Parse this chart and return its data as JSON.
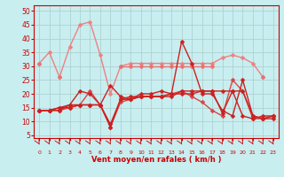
{
  "x": [
    0,
    1,
    2,
    3,
    4,
    5,
    6,
    7,
    8,
    9,
    10,
    11,
    12,
    13,
    14,
    15,
    16,
    17,
    18,
    19,
    20,
    21,
    22,
    23
  ],
  "series": [
    {
      "color": "#f08080",
      "lw": 1.0,
      "marker": "D",
      "ms": 2.5,
      "values": [
        31,
        35,
        26,
        37,
        45,
        46,
        34,
        20,
        30,
        31,
        31,
        31,
        31,
        31,
        31,
        31,
        31,
        31,
        33,
        34,
        33,
        31,
        26,
        null
      ]
    },
    {
      "color": "#e87070",
      "lw": 1.0,
      "marker": "D",
      "ms": 2.5,
      "values": [
        31,
        null,
        26,
        null,
        null,
        null,
        null,
        null,
        30,
        30,
        30,
        30,
        30,
        30,
        30,
        30,
        30,
        30,
        null,
        null,
        null,
        null,
        26,
        null
      ]
    },
    {
      "color": "#dd4444",
      "lw": 1.0,
      "marker": "D",
      "ms": 2.5,
      "values": [
        14,
        14,
        14,
        15,
        16,
        21,
        16,
        8,
        17,
        18,
        19,
        19,
        19,
        20,
        21,
        19,
        17,
        14,
        12,
        25,
        21,
        11,
        11,
        12
      ]
    },
    {
      "color": "#cc2020",
      "lw": 1.0,
      "marker": "D",
      "ms": 2.5,
      "values": [
        14,
        14,
        14,
        16,
        21,
        20,
        16,
        23,
        19,
        18,
        20,
        20,
        21,
        20,
        20,
        20,
        21,
        21,
        21,
        21,
        21,
        12,
        11,
        11
      ]
    },
    {
      "color": "#cc2020",
      "lw": 1.0,
      "marker": "D",
      "ms": 2.5,
      "values": [
        14,
        14,
        15,
        15,
        16,
        16,
        16,
        9,
        18,
        19,
        19,
        19,
        19,
        19,
        21,
        21,
        21,
        21,
        13,
        21,
        12,
        11,
        12,
        12
      ]
    },
    {
      "color": "#cc2020",
      "lw": 1.0,
      "marker": "D",
      "ms": 2.5,
      "values": [
        14,
        14,
        15,
        16,
        16,
        16,
        16,
        8,
        18,
        18,
        19,
        19,
        19,
        20,
        39,
        31,
        20,
        20,
        14,
        12,
        25,
        12,
        11,
        12
      ]
    }
  ],
  "xlabel": "Vent moyen/en rafales ( km/h )",
  "xlim": [
    -0.5,
    23.5
  ],
  "ylim": [
    4,
    52
  ],
  "yticks": [
    5,
    10,
    15,
    20,
    25,
    30,
    35,
    40,
    45,
    50
  ],
  "xticks": [
    0,
    1,
    2,
    3,
    4,
    5,
    6,
    7,
    8,
    9,
    10,
    11,
    12,
    13,
    14,
    15,
    16,
    17,
    18,
    19,
    20,
    21,
    22,
    23
  ],
  "bg_color": "#c8eef0",
  "grid_color": "#aacccc",
  "axis_color": "#cc0000",
  "tick_label_color": "#cc0000",
  "xlabel_color": "#cc0000"
}
